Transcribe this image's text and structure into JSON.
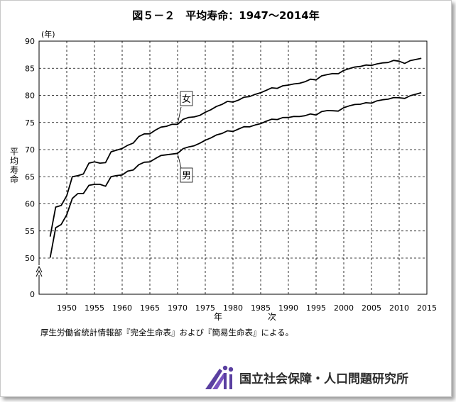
{
  "chart_data": {
    "type": "line",
    "title": "図５－２　平均寿命：1947～2014年",
    "xlabel": "年　次",
    "ylabel": "平均寿命",
    "yunit": "(年)",
    "source": "厚生労働省統計情報部『完全生命表』および『簡易生命表』による。",
    "xlim": [
      1945,
      2015
    ],
    "ylim": [
      45,
      90
    ],
    "y_axis_break": true,
    "y_break_label": "0",
    "x_ticks": [
      "1950",
      "1955",
      "1960",
      "1965",
      "1970",
      "1975",
      "1980",
      "1985",
      "1990",
      "1995",
      "2000",
      "2005",
      "2010",
      "2015"
    ],
    "y_ticks": [
      "50",
      "55",
      "60",
      "65",
      "70",
      "75",
      "80",
      "85",
      "90"
    ],
    "grid": true,
    "series": [
      {
        "name": "女",
        "x": [
          1947,
          1948,
          1949,
          1950,
          1951,
          1952,
          1953,
          1954,
          1955,
          1956,
          1957,
          1958,
          1959,
          1960,
          1961,
          1962,
          1963,
          1964,
          1965,
          1966,
          1967,
          1968,
          1969,
          1970,
          1971,
          1972,
          1973,
          1974,
          1975,
          1976,
          1977,
          1978,
          1979,
          1980,
          1981,
          1982,
          1983,
          1984,
          1985,
          1986,
          1987,
          1988,
          1989,
          1990,
          1991,
          1992,
          1993,
          1994,
          1995,
          1996,
          1997,
          1998,
          1999,
          2000,
          2001,
          2002,
          2003,
          2004,
          2005,
          2006,
          2007,
          2008,
          2009,
          2010,
          2011,
          2012,
          2013,
          2014
        ],
        "y": [
          53.96,
          59.4,
          59.7,
          61.5,
          65.0,
          65.2,
          65.5,
          67.5,
          67.75,
          67.5,
          67.6,
          69.6,
          69.9,
          70.19,
          70.8,
          71.2,
          72.4,
          72.9,
          72.92,
          73.6,
          74.15,
          74.3,
          74.67,
          74.66,
          75.58,
          75.94,
          76.02,
          76.3,
          76.89,
          77.35,
          77.95,
          78.33,
          78.89,
          78.76,
          79.13,
          79.66,
          79.78,
          80.18,
          80.48,
          80.93,
          81.39,
          81.3,
          81.77,
          81.9,
          82.11,
          82.22,
          82.51,
          82.98,
          82.85,
          83.59,
          83.82,
          84.01,
          83.99,
          84.6,
          84.93,
          85.23,
          85.33,
          85.59,
          85.52,
          85.81,
          85.99,
          86.05,
          86.44,
          86.3,
          85.9,
          86.41,
          86.61,
          86.83
        ]
      },
      {
        "name": "男",
        "x": [
          1947,
          1948,
          1949,
          1950,
          1951,
          1952,
          1953,
          1954,
          1955,
          1956,
          1957,
          1958,
          1959,
          1960,
          1961,
          1962,
          1963,
          1964,
          1965,
          1966,
          1967,
          1968,
          1969,
          1970,
          1971,
          1972,
          1973,
          1974,
          1975,
          1976,
          1977,
          1978,
          1979,
          1980,
          1981,
          1982,
          1983,
          1984,
          1985,
          1986,
          1987,
          1988,
          1989,
          1990,
          1991,
          1992,
          1993,
          1994,
          1995,
          1996,
          1997,
          1998,
          1999,
          2000,
          2001,
          2002,
          2003,
          2004,
          2005,
          2006,
          2007,
          2008,
          2009,
          2010,
          2011,
          2012,
          2013,
          2014
        ],
        "y": [
          50.06,
          55.6,
          56.2,
          58.0,
          61.0,
          61.9,
          61.9,
          63.41,
          63.6,
          63.59,
          63.24,
          65.02,
          65.21,
          65.32,
          66.03,
          66.23,
          67.21,
          67.67,
          67.74,
          68.35,
          68.91,
          69.05,
          69.18,
          69.31,
          70.17,
          70.5,
          70.7,
          71.16,
          71.73,
          72.15,
          72.69,
          72.97,
          73.46,
          73.35,
          73.79,
          74.22,
          74.2,
          74.54,
          74.78,
          75.23,
          75.61,
          75.54,
          75.91,
          75.92,
          76.11,
          76.09,
          76.25,
          76.57,
          76.38,
          77.01,
          77.19,
          77.16,
          77.1,
          77.72,
          78.07,
          78.32,
          78.36,
          78.64,
          78.56,
          79.0,
          79.19,
          79.29,
          79.59,
          79.55,
          79.44,
          79.94,
          80.21,
          80.5
        ]
      }
    ]
  },
  "logo": {
    "text": "国立社会保障・人口問題研究所"
  }
}
